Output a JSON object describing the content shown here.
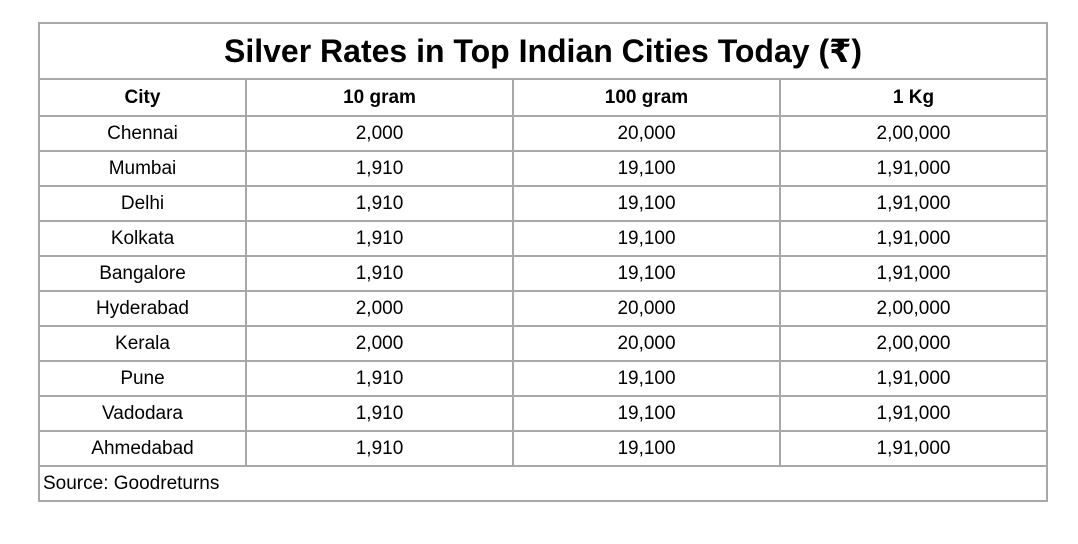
{
  "title": "Silver Rates in Top Indian Cities Today (₹)",
  "columns": [
    "City",
    "10 gram",
    "100 gram",
    "1 Kg"
  ],
  "rows": [
    [
      "Chennai",
      "2,000",
      "20,000",
      "2,00,000"
    ],
    [
      "Mumbai",
      "1,910",
      "19,100",
      "1,91,000"
    ],
    [
      "Delhi",
      "1,910",
      "19,100",
      "1,91,000"
    ],
    [
      "Kolkata",
      "1,910",
      "19,100",
      "1,91,000"
    ],
    [
      "Bangalore",
      "1,910",
      "19,100",
      "1,91,000"
    ],
    [
      "Hyderabad",
      "2,000",
      "20,000",
      "2,00,000"
    ],
    [
      "Kerala",
      "2,000",
      "20,000",
      "2,00,000"
    ],
    [
      "Pune",
      "1,910",
      "19,100",
      "1,91,000"
    ],
    [
      "Vadodara",
      "1,910",
      "19,100",
      "1,91,000"
    ],
    [
      "Ahmedabad",
      "1,910",
      "19,100",
      "1,91,000"
    ]
  ],
  "source": "Source: Goodreturns"
}
